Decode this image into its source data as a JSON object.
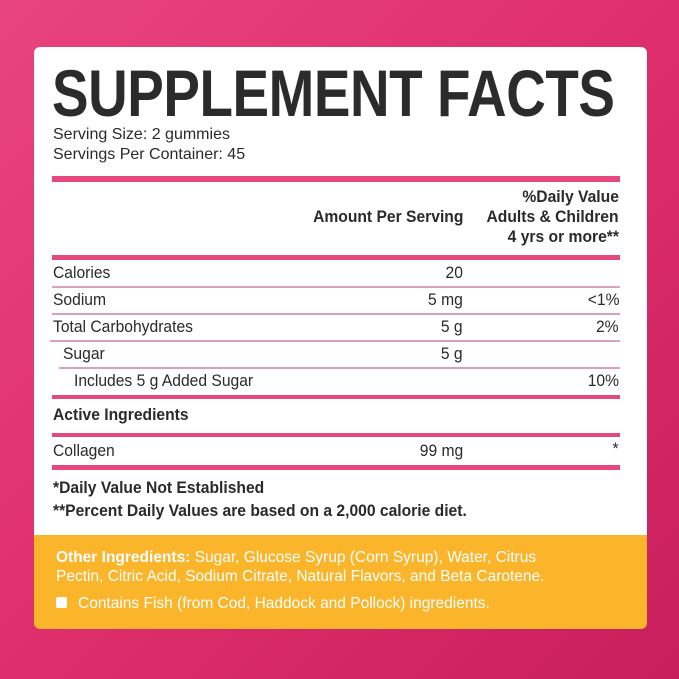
{
  "title": "SUPPLEMENT FACTS",
  "serving_size": "Serving Size: 2 gummies",
  "servings_per_container": "Servings Per Container: 45",
  "header": {
    "amount": "Amount Per Serving",
    "dv_line1": "%Daily Value",
    "dv_line2": "Adults & Children",
    "dv_line3": "4 yrs or more**"
  },
  "rows": [
    {
      "name": "Calories",
      "amount": "20",
      "dv": ""
    },
    {
      "name": "Sodium",
      "amount": "5 mg",
      "dv": "<1%"
    },
    {
      "name": "Total Carbohydrates",
      "amount": "5 g",
      "dv": "2%"
    },
    {
      "name": "Sugar",
      "amount": "5 g",
      "dv": ""
    },
    {
      "name": "Includes 5 g Added Sugar",
      "amount": "",
      "dv": "10%"
    }
  ],
  "active_heading": "Active Ingredients",
  "active": {
    "name": "Collagen",
    "amount": "99 mg",
    "dv": "*"
  },
  "footnote1": "*Daily Value Not Established",
  "footnote2": "**Percent Daily Values are based on a 2,000 calorie diet.",
  "other_label": "Other Ingredients:",
  "other_line1": "Sugar, Glucose Syrup (Corn Syrup), Water, Citrus",
  "other_line2": "Pectin, Citric Acid, Sodium Citrate, Natural Flavors, and Beta Carotene.",
  "allergen": "Contains Fish (from Cod, Haddock and Pollock) ingredients.",
  "colors": {
    "accent": "#e6487c",
    "panel": "#fbb52b",
    "background": "#de2f6c"
  }
}
